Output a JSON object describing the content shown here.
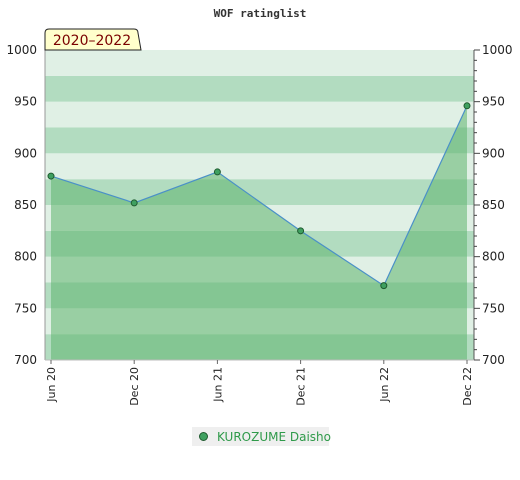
{
  "chart_data": {
    "type": "area",
    "title": "WOF ratinglist",
    "period_badge": "2020–2022",
    "x": [
      "Jun 20",
      "Dec 20",
      "Jun 21",
      "Dec 21",
      "Jun 22",
      "Dec 22"
    ],
    "series": [
      {
        "name": "KUROZUME Daisho",
        "values": [
          878,
          852,
          882,
          825,
          772,
          946
        ]
      }
    ],
    "ylim": [
      700,
      1000
    ],
    "yticks": [
      700,
      750,
      800,
      850,
      900,
      950,
      1000
    ],
    "grid": "horizontal bands",
    "legend": "bottom-center",
    "colors": {
      "area_fill": "#5fb46e",
      "line": "#4a90c8",
      "marker": "#3fa060",
      "band_dark": "#b2dcc0",
      "band_light": "#e0f0e5",
      "badge_bg": "#ffffcc"
    }
  }
}
